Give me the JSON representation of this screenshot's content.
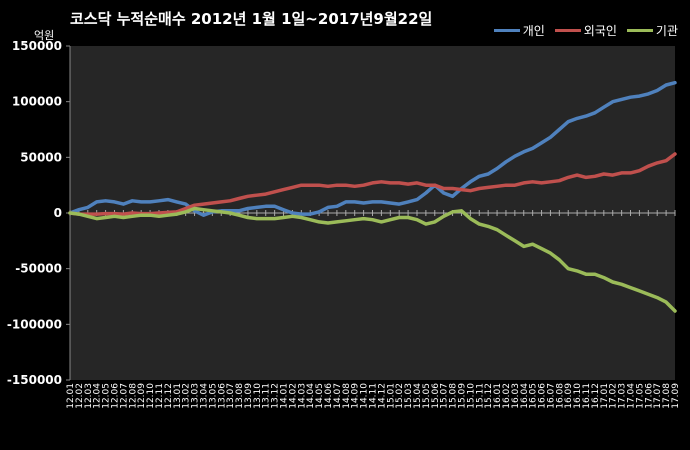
{
  "chart_data": {
    "type": "line",
    "title": "코스닥  누적순매수 2012년 1월 1일~2017년9월22일",
    "ylabel": "억원",
    "xlabel": "",
    "ylim": [
      -150000,
      150000
    ],
    "y_ticks": [
      150000,
      100000,
      50000,
      0,
      -50000,
      -100000,
      -150000
    ],
    "grid": false,
    "legend_position": "top-right",
    "x_tick_labels": [
      "12.01",
      "12.02",
      "12.03",
      "12.04",
      "12.05",
      "12.06",
      "12.07",
      "12.08",
      "12.09",
      "12.10",
      "12.11",
      "12.12",
      "13.01",
      "13.02",
      "13.03",
      "13.04",
      "13.05",
      "13.06",
      "13.07",
      "13.08",
      "13.09",
      "13.10",
      "13.11",
      "13.12",
      "14.01",
      "14.02",
      "14.03",
      "14.04",
      "14.05",
      "14.06",
      "14.07",
      "14.08",
      "14.09",
      "14.10",
      "14.11",
      "14.12",
      "15.01",
      "15.02",
      "15.03",
      "15.04",
      "15.05",
      "15.06",
      "15.07",
      "15.08",
      "15.09",
      "15.10",
      "15.11",
      "15.12",
      "16.01",
      "16.02",
      "16.03",
      "16.04",
      "16.05",
      "16.06",
      "16.07",
      "16.08",
      "16.09",
      "16.10",
      "16.11",
      "16.12",
      "17.01",
      "17.02",
      "17.03",
      "17.04",
      "17.05",
      "17.06",
      "17.07",
      "17.08",
      "17.09"
    ],
    "series": [
      {
        "name": "개인",
        "color": "#4f81bd",
        "values": [
          0,
          3000,
          5000,
          10000,
          11000,
          10000,
          8000,
          11000,
          10000,
          10000,
          11000,
          12000,
          10000,
          8000,
          2000,
          -2000,
          1000,
          2000,
          2000,
          2000,
          4000,
          5000,
          6000,
          6000,
          3000,
          0,
          -1000,
          -1000,
          1000,
          5000,
          6000,
          10000,
          10000,
          9000,
          10000,
          10000,
          9000,
          8000,
          10000,
          12000,
          18000,
          25000,
          18000,
          15000,
          22000,
          28000,
          33000,
          35000,
          40000,
          46000,
          51000,
          55000,
          58000,
          63000,
          68000,
          75000,
          82000,
          85000,
          87000,
          90000,
          95000,
          100000,
          102000,
          104000,
          105000,
          107000,
          110000,
          115000,
          117000
        ]
      },
      {
        "name": "외국인",
        "color": "#c0504d",
        "values": [
          0,
          -1000,
          -1000,
          -1000,
          -500,
          -500,
          -1000,
          0,
          -500,
          -500,
          0,
          500,
          1000,
          4000,
          7000,
          8000,
          9000,
          10000,
          11000,
          13000,
          15000,
          16000,
          17000,
          19000,
          21000,
          23000,
          25000,
          25000,
          25000,
          24000,
          25000,
          25000,
          24000,
          25000,
          27000,
          28000,
          27000,
          27000,
          26000,
          27000,
          25000,
          25000,
          22000,
          22000,
          21000,
          20000,
          22000,
          23000,
          24000,
          25000,
          25000,
          27000,
          28000,
          27000,
          28000,
          29000,
          32000,
          34000,
          32000,
          33000,
          35000,
          34000,
          36000,
          36000,
          38000,
          42000,
          45000,
          47000,
          53000
        ]
      },
      {
        "name": "기관",
        "color": "#9bbb59",
        "values": [
          0,
          -1000,
          -3000,
          -5000,
          -4000,
          -3000,
          -4000,
          -3000,
          -2000,
          -2000,
          -3000,
          -2000,
          -1000,
          1000,
          4000,
          3000,
          2000,
          1000,
          0,
          -2000,
          -4000,
          -5000,
          -5000,
          -5000,
          -4000,
          -3000,
          -4000,
          -6000,
          -8000,
          -9000,
          -8000,
          -7000,
          -6000,
          -5000,
          -6000,
          -8000,
          -6000,
          -4000,
          -4000,
          -6000,
          -10000,
          -8000,
          -3000,
          1000,
          2000,
          -5000,
          -10000,
          -12000,
          -15000,
          -20000,
          -25000,
          -30000,
          -28000,
          -32000,
          -36000,
          -42000,
          -50000,
          -52000,
          -55000,
          -55000,
          -58000,
          -62000,
          -64000,
          -67000,
          -70000,
          -73000,
          -76000,
          -80000,
          -88000
        ]
      }
    ]
  }
}
